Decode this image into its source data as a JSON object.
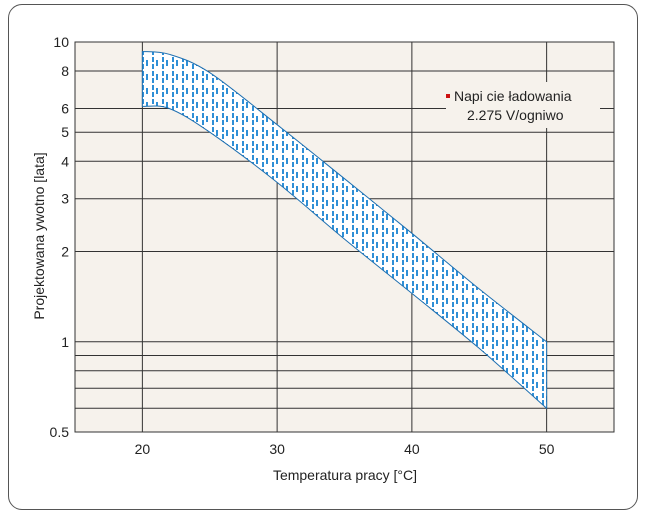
{
  "chart_data": {
    "type": "area",
    "title": "",
    "xlabel": "Temperatura pracy [°C]",
    "ylabel": "Projektowana    ywotno    [lata]",
    "xlim": [
      15,
      55
    ],
    "ylim": [
      0.5,
      10
    ],
    "yscale": "log",
    "grid": true,
    "x_ticks": [
      20,
      30,
      40,
      50
    ],
    "y_ticks": [
      0.5,
      1,
      2,
      3,
      4,
      5,
      6,
      8,
      10
    ],
    "y_tick_labels": [
      "0.5",
      "1",
      "2",
      "3",
      "4",
      "5",
      "6",
      "8",
      "10"
    ],
    "extra_grid_y": [
      0.6,
      0.7,
      0.8,
      0.9
    ],
    "series": [
      {
        "name": "Napi  cie ładowania 2.275 V/ogniwo",
        "x": [
          20,
          22,
          25,
          30,
          35,
          40,
          45,
          50
        ],
        "upper": [
          9.3,
          9.1,
          7.9,
          5.3,
          3.5,
          2.3,
          1.5,
          1.0
        ],
        "lower": [
          6.1,
          6.0,
          5.0,
          3.4,
          2.2,
          1.45,
          0.95,
          0.6
        ]
      }
    ],
    "legend": {
      "position": "top-right",
      "line1": "Napi  cie ładowania",
      "line2": "2.275 V/ogniwo"
    },
    "colors": {
      "plot_bg": "#f6f2ec",
      "band_fill": "#ffffff",
      "band_pattern": "#2f8fd6",
      "band_edge": "#1e6fb0",
      "grid": "#333333",
      "legend_marker": "#cc1111"
    }
  }
}
